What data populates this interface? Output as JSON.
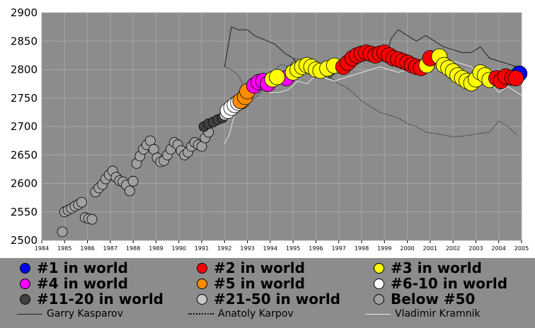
{
  "chart_data": {
    "type": "scatter",
    "title": "",
    "xlabel": "",
    "ylabel": "",
    "xlim": [
      1984,
      2005
    ],
    "ylim": [
      2500,
      2900
    ],
    "x_ticks": [
      "1984",
      "1985",
      "1986",
      "1987",
      "1988",
      "1989",
      "1990",
      "1991",
      "1992",
      "1993",
      "1994",
      "1995",
      "1996",
      "1997",
      "1998",
      "1999",
      "2000",
      "2001",
      "2002",
      "2003",
      "2004",
      "2005"
    ],
    "y_ticks": [
      "2500",
      "2550",
      "2600",
      "2650",
      "2700",
      "2750",
      "2800",
      "2850",
      "2900"
    ],
    "grid": true,
    "legend": [
      {
        "label": "#1 in world",
        "color": "#0000ff"
      },
      {
        "label": "#2 in world",
        "color": "#ff0000"
      },
      {
        "label": "#3 in world",
        "color": "#ffff00"
      },
      {
        "label": "#4 in world",
        "color": "#ff00ff"
      },
      {
        "label": "#5 in world",
        "color": "#ff8c00"
      },
      {
        "label": "#6-10 in world",
        "color": "#ffffff"
      },
      {
        "label": "#11-20 in world",
        "color": "#404040"
      },
      {
        "label": "#21-50 in world",
        "color": "#c8c8c8"
      },
      {
        "label": "Below #50",
        "color": "#a0a0a0"
      }
    ],
    "line_legend": [
      {
        "label": "Garry Kasparov",
        "style": "solid"
      },
      {
        "label": "Anatoly Karpov",
        "style": "dotted"
      },
      {
        "label": "Vladimir Kramnik",
        "style": "light"
      }
    ],
    "series": [
      {
        "name": "Garry Kasparov",
        "style": "solid",
        "color": "#222222",
        "x": [
          1992.0,
          1992.3,
          1992.6,
          1993.0,
          1993.3,
          1993.6,
          1993.9,
          1994.2,
          1994.6,
          1995.0,
          1995.4,
          1995.8,
          1996.2,
          1996.6,
          1997.0,
          1997.4,
          1997.8,
          1998.2,
          1998.6,
          1999.0,
          1999.3,
          1999.6,
          2000.0,
          2000.4,
          2000.8,
          2001.2,
          2001.6,
          2002.0,
          2002.4,
          2002.8,
          2003.2,
          2003.6,
          2004.0,
          2004.4,
          2004.8,
          2005.0
        ],
        "y": [
          2805,
          2875,
          2870,
          2870,
          2860,
          2855,
          2850,
          2845,
          2830,
          2820,
          2800,
          2795,
          2800,
          2785,
          2800,
          2820,
          2830,
          2830,
          2825,
          2815,
          2855,
          2870,
          2860,
          2850,
          2860,
          2850,
          2840,
          2835,
          2830,
          2830,
          2840,
          2820,
          2815,
          2810,
          2805,
          2800
        ]
      },
      {
        "name": "Anatoly Karpov",
        "style": "dotted",
        "color": "#111111",
        "x": [
          1992.0,
          1992.3,
          1992.6,
          1993.0,
          1993.3,
          1993.6,
          1993.9,
          1994.2,
          1994.5,
          1994.8,
          1995.1,
          1995.4,
          1995.8,
          1996.1,
          1996.4,
          1996.7,
          1997.0,
          1997.3,
          1997.6,
          1998.0,
          1998.4,
          1998.8,
          1999.2,
          1999.6,
          2000.0,
          2000.4,
          2000.8,
          2001.2,
          2001.6,
          2002.0,
          2002.4,
          2002.8,
          2003.2,
          2003.6,
          2004.0,
          2004.4,
          2004.8
        ],
        "y": [
          2805,
          2800,
          2790,
          2760,
          2750,
          2760,
          2780,
          2800,
          2810,
          2805,
          2820,
          2815,
          2810,
          2800,
          2790,
          2785,
          2775,
          2770,
          2760,
          2745,
          2735,
          2725,
          2720,
          2715,
          2705,
          2700,
          2690,
          2688,
          2685,
          2682,
          2683,
          2685,
          2688,
          2690,
          2710,
          2700,
          2685
        ]
      },
      {
        "name": "Vladimir Kramnik",
        "style": "light",
        "color": "#e6e6e6",
        "x": [
          1992.0,
          1992.2,
          1992.5,
          1992.8,
          1993.1,
          1993.4,
          1993.7,
          1994.0,
          1994.4,
          1994.8,
          1995.2,
          1995.6,
          1996.0,
          1996.4,
          1996.8,
          1997.2,
          1997.6,
          1998.0,
          1998.4,
          1998.8,
          1999.2,
          1999.6,
          2000.0,
          2000.4,
          2000.8,
          2001.2,
          2001.6,
          2002.0,
          2002.4,
          2002.8,
          2003.2,
          2003.6,
          2004.0,
          2004.4,
          2004.8,
          2005.0
        ],
        "y": [
          2670,
          2685,
          2730,
          2740,
          2760,
          2770,
          2765,
          2760,
          2760,
          2765,
          2780,
          2775,
          2790,
          2785,
          2780,
          2785,
          2790,
          2795,
          2800,
          2805,
          2800,
          2795,
          2800,
          2810,
          2815,
          2820,
          2815,
          2815,
          2810,
          2805,
          2790,
          2780,
          2760,
          2770,
          2760,
          2755
        ]
      }
    ],
    "points": [
      {
        "x": 1984.9,
        "y": 2515,
        "rank": "Below #50"
      },
      {
        "x": 1985.0,
        "y": 2550,
        "rank": "Below #50"
      },
      {
        "x": 1985.15,
        "y": 2553,
        "rank": "Below #50"
      },
      {
        "x": 1985.3,
        "y": 2556,
        "rank": "Below #50"
      },
      {
        "x": 1985.45,
        "y": 2560,
        "rank": "Below #50"
      },
      {
        "x": 1985.6,
        "y": 2563,
        "rank": "Below #50"
      },
      {
        "x": 1985.75,
        "y": 2567,
        "rank": "Below #50"
      },
      {
        "x": 1985.9,
        "y": 2540,
        "rank": "Below #50"
      },
      {
        "x": 1986.05,
        "y": 2538,
        "rank": "Below #50"
      },
      {
        "x": 1986.2,
        "y": 2537,
        "rank": "Below #50"
      },
      {
        "x": 1986.35,
        "y": 2585,
        "rank": "Below #50"
      },
      {
        "x": 1986.5,
        "y": 2592,
        "rank": "Below #50"
      },
      {
        "x": 1986.65,
        "y": 2598,
        "rank": "Below #50"
      },
      {
        "x": 1986.8,
        "y": 2608,
        "rank": "Below #50"
      },
      {
        "x": 1986.95,
        "y": 2615,
        "rank": "Below #50"
      },
      {
        "x": 1987.1,
        "y": 2622,
        "rank": "Below #50"
      },
      {
        "x": 1987.25,
        "y": 2611,
        "rank": "Below #50"
      },
      {
        "x": 1987.4,
        "y": 2605,
        "rank": "Below #50"
      },
      {
        "x": 1987.55,
        "y": 2603,
        "rank": "Below #50"
      },
      {
        "x": 1987.7,
        "y": 2597,
        "rank": "Below #50"
      },
      {
        "x": 1987.85,
        "y": 2587,
        "rank": "Below #50"
      },
      {
        "x": 1988.0,
        "y": 2604,
        "rank": "Below #50"
      },
      {
        "x": 1988.15,
        "y": 2635,
        "rank": "Below #50"
      },
      {
        "x": 1988.3,
        "y": 2648,
        "rank": "Below #50"
      },
      {
        "x": 1988.45,
        "y": 2660,
        "rank": "Below #50"
      },
      {
        "x": 1988.6,
        "y": 2668,
        "rank": "Below #50"
      },
      {
        "x": 1988.75,
        "y": 2675,
        "rank": "Below #50"
      },
      {
        "x": 1988.9,
        "y": 2660,
        "rank": "Below #50"
      },
      {
        "x": 1989.05,
        "y": 2645,
        "rank": "Below #50"
      },
      {
        "x": 1989.2,
        "y": 2638,
        "rank": "Below #50"
      },
      {
        "x": 1989.35,
        "y": 2640,
        "rank": "Below #50"
      },
      {
        "x": 1989.5,
        "y": 2650,
        "rank": "Below #50"
      },
      {
        "x": 1989.65,
        "y": 2660,
        "rank": "Below #50"
      },
      {
        "x": 1989.8,
        "y": 2672,
        "rank": "Below #50"
      },
      {
        "x": 1989.95,
        "y": 2668,
        "rank": "Below #50"
      },
      {
        "x": 1990.1,
        "y": 2658,
        "rank": "Below #50"
      },
      {
        "x": 1990.25,
        "y": 2650,
        "rank": "Below #50"
      },
      {
        "x": 1990.4,
        "y": 2655,
        "rank": "Below #50"
      },
      {
        "x": 1990.55,
        "y": 2665,
        "rank": "Below #50"
      },
      {
        "x": 1990.7,
        "y": 2672,
        "rank": "Below #50"
      },
      {
        "x": 1990.85,
        "y": 2668,
        "rank": "Below #50"
      },
      {
        "x": 1991.0,
        "y": 2665,
        "rank": "Below #50"
      },
      {
        "x": 1991.15,
        "y": 2680,
        "rank": "Below #50"
      },
      {
        "x": 1991.3,
        "y": 2690,
        "rank": "Below #50"
      },
      {
        "x": 1991.1,
        "y": 2700,
        "rank": "#11-20 in world"
      },
      {
        "x": 1991.3,
        "y": 2705,
        "rank": "#11-20 in world"
      },
      {
        "x": 1991.5,
        "y": 2708,
        "rank": "#11-20 in world"
      },
      {
        "x": 1991.7,
        "y": 2712,
        "rank": "#11-20 in world"
      },
      {
        "x": 1991.9,
        "y": 2715,
        "rank": "#11-20 in world"
      },
      {
        "x": 1992.0,
        "y": 2720,
        "rank": "#21-50 in world"
      },
      {
        "x": 1992.15,
        "y": 2728,
        "rank": "#6-10 in world"
      },
      {
        "x": 1992.3,
        "y": 2733,
        "rank": "#6-10 in world"
      },
      {
        "x": 1992.45,
        "y": 2738,
        "rank": "#6-10 in world"
      },
      {
        "x": 1992.6,
        "y": 2742,
        "rank": "#6-10 in world"
      },
      {
        "x": 1992.75,
        "y": 2745,
        "rank": "#6-10 in world"
      },
      {
        "x": 1992.7,
        "y": 2745,
        "rank": "#5 in world"
      },
      {
        "x": 1992.9,
        "y": 2752,
        "rank": "#5 in world"
      },
      {
        "x": 1993.0,
        "y": 2762,
        "rank": "#5 in world"
      },
      {
        "x": 1993.3,
        "y": 2772,
        "rank": "#4 in world"
      },
      {
        "x": 1993.5,
        "y": 2778,
        "rank": "#4 in world"
      },
      {
        "x": 1993.7,
        "y": 2780,
        "rank": "#4 in world"
      },
      {
        "x": 1993.9,
        "y": 2775,
        "rank": "#4 in world"
      },
      {
        "x": 1994.7,
        "y": 2785,
        "rank": "#4 in world"
      },
      {
        "x": 1994.1,
        "y": 2783,
        "rank": "#3 in world"
      },
      {
        "x": 1994.3,
        "y": 2787,
        "rank": "#3 in world"
      },
      {
        "x": 1995.0,
        "y": 2795,
        "rank": "#3 in world"
      },
      {
        "x": 1995.2,
        "y": 2800,
        "rank": "#3 in world"
      },
      {
        "x": 1995.4,
        "y": 2805,
        "rank": "#3 in world"
      },
      {
        "x": 1995.6,
        "y": 2808,
        "rank": "#3 in world"
      },
      {
        "x": 1995.8,
        "y": 2805,
        "rank": "#3 in world"
      },
      {
        "x": 1996.0,
        "y": 2800,
        "rank": "#3 in world"
      },
      {
        "x": 1996.2,
        "y": 2798,
        "rank": "#3 in world"
      },
      {
        "x": 1996.5,
        "y": 2802,
        "rank": "#3 in world"
      },
      {
        "x": 1996.8,
        "y": 2807,
        "rank": "#3 in world"
      },
      {
        "x": 1997.2,
        "y": 2805,
        "rank": "#2 in world"
      },
      {
        "x": 1997.4,
        "y": 2812,
        "rank": "#2 in world"
      },
      {
        "x": 1997.6,
        "y": 2820,
        "rank": "#2 in world"
      },
      {
        "x": 1997.8,
        "y": 2825,
        "rank": "#2 in world"
      },
      {
        "x": 1998.0,
        "y": 2828,
        "rank": "#2 in world"
      },
      {
        "x": 1998.2,
        "y": 2830,
        "rank": "#2 in world"
      },
      {
        "x": 1998.4,
        "y": 2828,
        "rank": "#2 in world"
      },
      {
        "x": 1998.6,
        "y": 2825,
        "rank": "#2 in world"
      },
      {
        "x": 1998.8,
        "y": 2828,
        "rank": "#2 in world"
      },
      {
        "x": 1999.0,
        "y": 2830,
        "rank": "#2 in world"
      },
      {
        "x": 1999.2,
        "y": 2825,
        "rank": "#2 in world"
      },
      {
        "x": 1999.4,
        "y": 2820,
        "rank": "#2 in world"
      },
      {
        "x": 1999.6,
        "y": 2818,
        "rank": "#2 in world"
      },
      {
        "x": 1999.8,
        "y": 2815,
        "rank": "#2 in world"
      },
      {
        "x": 2000.0,
        "y": 2812,
        "rank": "#2 in world"
      },
      {
        "x": 2000.2,
        "y": 2808,
        "rank": "#2 in world"
      },
      {
        "x": 2000.4,
        "y": 2805,
        "rank": "#2 in world"
      },
      {
        "x": 2000.6,
        "y": 2803,
        "rank": "#2 in world"
      },
      {
        "x": 2000.85,
        "y": 2808,
        "rank": "#3 in world"
      },
      {
        "x": 2001.0,
        "y": 2820,
        "rank": "#2 in world"
      },
      {
        "x": 2001.4,
        "y": 2823,
        "rank": "#3 in world"
      },
      {
        "x": 2001.6,
        "y": 2808,
        "rank": "#3 in world"
      },
      {
        "x": 2001.8,
        "y": 2803,
        "rank": "#3 in world"
      },
      {
        "x": 2002.0,
        "y": 2797,
        "rank": "#3 in world"
      },
      {
        "x": 2002.2,
        "y": 2790,
        "rank": "#3 in world"
      },
      {
        "x": 2002.4,
        "y": 2785,
        "rank": "#3 in world"
      },
      {
        "x": 2002.6,
        "y": 2780,
        "rank": "#3 in world"
      },
      {
        "x": 2002.8,
        "y": 2776,
        "rank": "#3 in world"
      },
      {
        "x": 2003.0,
        "y": 2783,
        "rank": "#3 in world"
      },
      {
        "x": 2003.2,
        "y": 2795,
        "rank": "#3 in world"
      },
      {
        "x": 2003.4,
        "y": 2790,
        "rank": "#3 in world"
      },
      {
        "x": 2003.6,
        "y": 2782,
        "rank": "#3 in world"
      },
      {
        "x": 2003.9,
        "y": 2785,
        "rank": "#2 in world"
      },
      {
        "x": 2004.1,
        "y": 2780,
        "rank": "#2 in world"
      },
      {
        "x": 2004.3,
        "y": 2788,
        "rank": "#2 in world"
      },
      {
        "x": 2004.6,
        "y": 2786,
        "rank": "#2 in world"
      },
      {
        "x": 2004.9,
        "y": 2793,
        "rank": "#1 in world"
      },
      {
        "x": 2004.75,
        "y": 2785,
        "rank": "#2 in world"
      }
    ]
  }
}
